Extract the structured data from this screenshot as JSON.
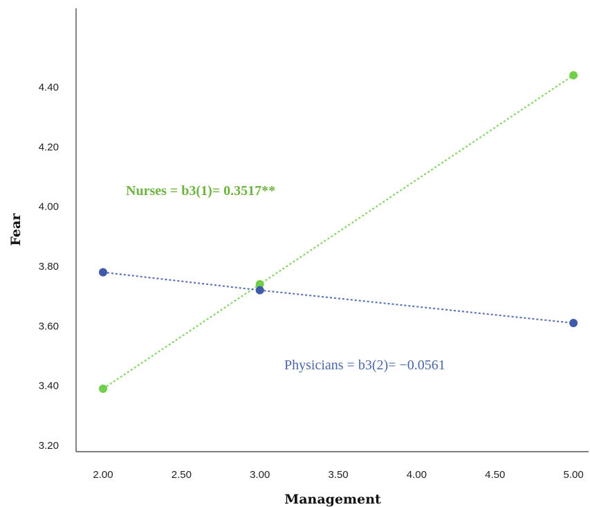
{
  "chart_data": {
    "type": "line",
    "xlabel": "Management",
    "ylabel": "Fear",
    "xlim": [
      2.0,
      5.0
    ],
    "ylim": [
      3.2,
      4.5
    ],
    "xticks": [
      "2.00",
      "2.50",
      "3.00",
      "3.50",
      "4.00",
      "4.50",
      "5.00"
    ],
    "yticks": [
      "3.20",
      "3.40",
      "3.60",
      "3.80",
      "4.00",
      "4.20",
      "4.40"
    ],
    "grid": false,
    "series": [
      {
        "key": "nurses",
        "color": "#6fce4a",
        "line_style": "dotted",
        "points": [
          {
            "x": 2.0,
            "y": 3.39
          },
          {
            "x": 3.0,
            "y": 3.74
          },
          {
            "x": 5.0,
            "y": 4.44
          }
        ]
      },
      {
        "key": "physicians",
        "color": "#3f5aa8",
        "line_style": "dotted",
        "points": [
          {
            "x": 2.0,
            "y": 3.78
          },
          {
            "x": 3.0,
            "y": 3.72
          },
          {
            "x": 5.0,
            "y": 3.61
          }
        ]
      }
    ],
    "annotations": [
      {
        "key": "nurses",
        "text": "Nurses = b3(1)= 0.3517**",
        "color": "#6db33f"
      },
      {
        "key": "physicians",
        "text": "Physicians = b3(2)= −0.0561",
        "color": "#4a65a8"
      }
    ]
  }
}
